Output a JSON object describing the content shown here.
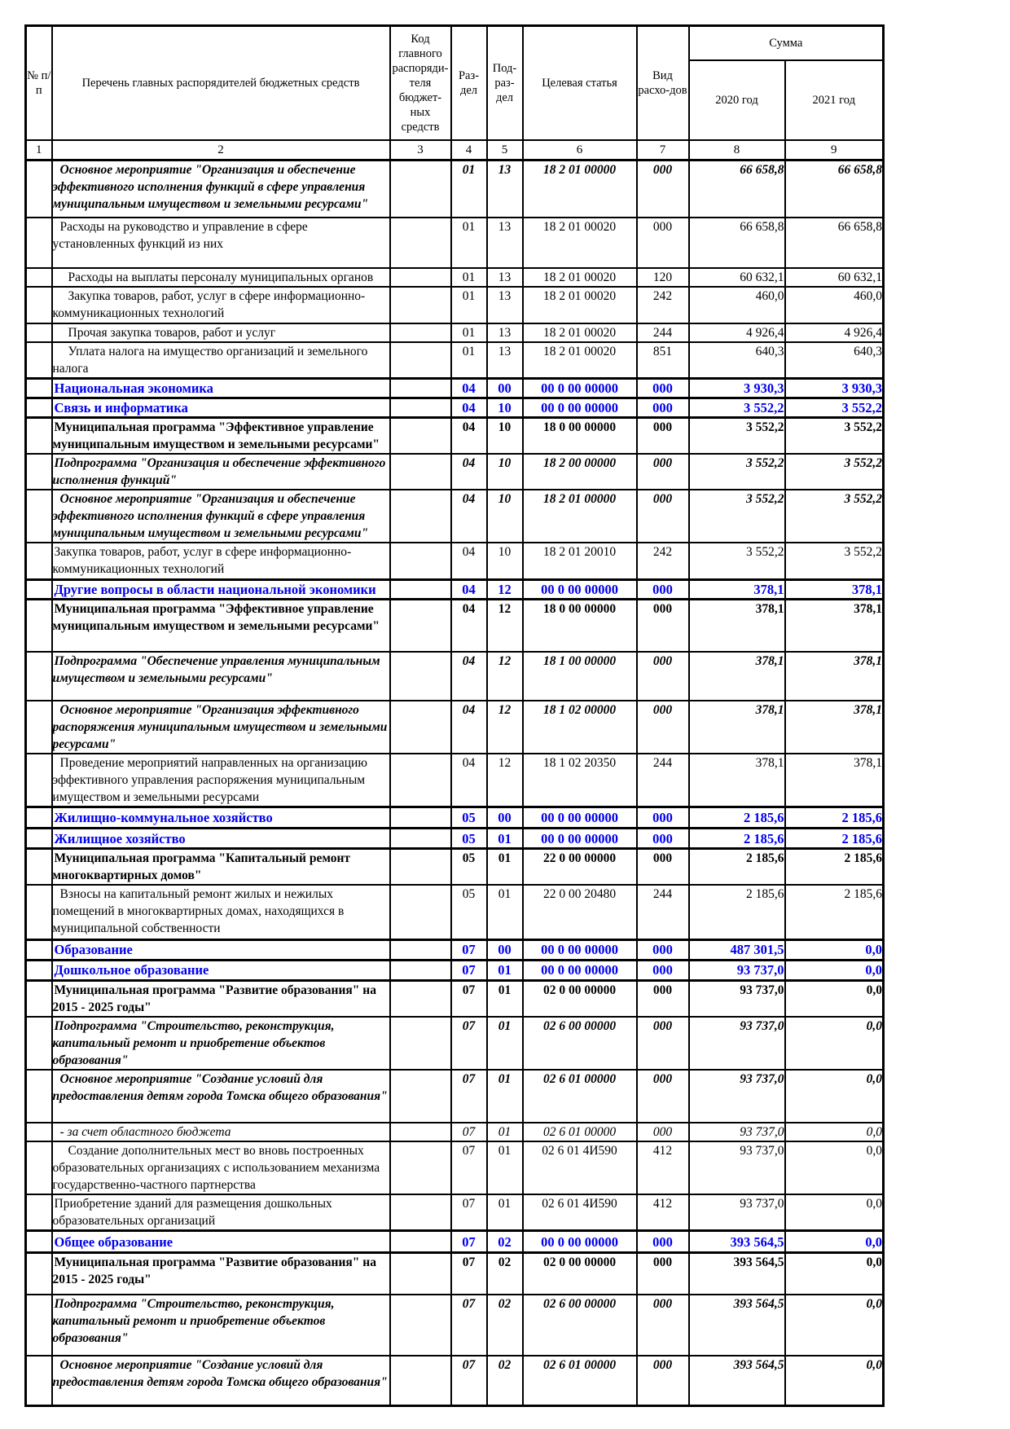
{
  "colors": {
    "section_text": "#0000ee"
  },
  "table": {
    "header": {
      "num": "№ п/п",
      "list": "Перечень главных распорядителей бюджетных средств",
      "grbs_code": "Код главного распоряди-теля бюджет-ных средств",
      "razdel": "Раз-дел",
      "podrazdel": "Под-раз-дел",
      "target_article": "Целевая статья",
      "vid": "Вид расхо-дов",
      "sum": "Сумма",
      "year_2020": "2020 год",
      "year_2021": "2021 год"
    },
    "column_numbers": [
      "1",
      "2",
      "3",
      "4",
      "5",
      "6",
      "7",
      "8",
      "9"
    ],
    "rows": [
      {
        "text": "Основное мероприятие \"Организация и обеспечение эффективного исполнения функций в сфере управления муниципальным имуществом и земельными ресурсами\"",
        "style": "bi",
        "ind": 1,
        "code": "",
        "rz": "01",
        "pr": "13",
        "cs": "18 2 01 00000",
        "vr": "000",
        "y2020": "66 658,8",
        "y2021": "66 658,8"
      },
      {
        "text": "Расходы на руководство и управление в сфере установленных функций из них",
        "style": "n",
        "ind": 1,
        "code": "",
        "rz": "01",
        "pr": "13",
        "cs": "18 2 01 00020",
        "vr": "000",
        "y2020": "66 658,8",
        "y2021": "66 658,8"
      },
      {
        "text": "Расходы на выплаты персоналу муниципальных органов",
        "style": "n",
        "ind": 2,
        "code": "",
        "rz": "01",
        "pr": "13",
        "cs": "18 2 01 00020",
        "vr": "120",
        "y2020": "60 632,1",
        "y2021": "60 632,1"
      },
      {
        "text": "Закупка товаров, работ, услуг в сфере информационно-коммуникационных технологий",
        "style": "n",
        "ind": 2,
        "code": "",
        "rz": "01",
        "pr": "13",
        "cs": "18 2 01 00020",
        "vr": "242",
        "y2020": "460,0",
        "y2021": "460,0"
      },
      {
        "text": "Прочая закупка товаров, работ и услуг",
        "style": "n",
        "ind": 2,
        "code": "",
        "rz": "01",
        "pr": "13",
        "cs": "18 2 01 00020",
        "vr": "244",
        "y2020": "4 926,4",
        "y2021": "4 926,4"
      },
      {
        "text": "Уплата налога на имущество организаций и земельного налога",
        "style": "n",
        "ind": 2,
        "code": "",
        "rz": "01",
        "pr": "13",
        "cs": "18 2 01 00020",
        "vr": "851",
        "y2020": "640,3",
        "y2021": "640,3"
      },
      {
        "text": "Национальная экономика",
        "style": "blue",
        "ind": 0,
        "code": "",
        "rz": "04",
        "pr": "00",
        "cs": "00 0 00 00000",
        "vr": "000",
        "y2020": "3 930,3",
        "y2021": "3 930,3"
      },
      {
        "text": "Связь и информатика",
        "style": "blue",
        "ind": 0,
        "code": "",
        "rz": "04",
        "pr": "10",
        "cs": "00 0 00 00000",
        "vr": "000",
        "y2020": "3 552,2",
        "y2021": "3 552,2"
      },
      {
        "text": "Муниципальная программа \"Эффективное управление муниципальным имуществом и земельными ресурсами\"",
        "style": "b",
        "ind": 0,
        "code": "",
        "rz": "04",
        "pr": "10",
        "cs": "18 0 00 00000",
        "vr": "000",
        "y2020": "3 552,2",
        "y2021": "3 552,2"
      },
      {
        "text": "Подпрограмма \"Организация и обеспечение эффективного исполнения функций\"",
        "style": "bi",
        "ind": 0,
        "code": "",
        "rz": "04",
        "pr": "10",
        "cs": "18 2 00 00000",
        "vr": "000",
        "y2020": "3 552,2",
        "y2021": "3 552,2"
      },
      {
        "text": "Основное мероприятие \"Организация и обеспечение эффективного исполнения функций в сфере управления муниципальным имуществом и земельными ресурсами\"",
        "style": "bi",
        "ind": 1,
        "code": "",
        "rz": "04",
        "pr": "10",
        "cs": "18 2 01 00000",
        "vr": "000",
        "y2020": "3 552,2",
        "y2021": "3 552,2"
      },
      {
        "text": "Закупка товаров, работ, услуг в сфере информационно-коммуникационных технологий",
        "style": "n",
        "ind": 0,
        "code": "",
        "rz": "04",
        "pr": "10",
        "cs": "18 2 01 20010",
        "vr": "242",
        "y2020": "3 552,2",
        "y2021": "3 552,2"
      },
      {
        "text": "Другие вопросы в области национальной экономики",
        "style": "blue",
        "ind": 0,
        "code": "",
        "rz": "04",
        "pr": "12",
        "cs": "00 0 00 00000",
        "vr": "000",
        "y2020": "378,1",
        "y2021": "378,1"
      },
      {
        "text": "Муниципальная программа \"Эффективное управление муниципальным имуществом и земельными ресурсами\"",
        "style": "b",
        "ind": 0,
        "code": "",
        "rz": "04",
        "pr": "12",
        "cs": "18 0 00 00000",
        "vr": "000",
        "y2020": "378,1",
        "y2021": "378,1"
      },
      {
        "text": "Подпрограмма \"Обеспечение управления муниципальным имуществом и земельными ресурсами\"",
        "style": "bi",
        "ind": 0,
        "code": "",
        "rz": "04",
        "pr": "12",
        "cs": "18 1 00 00000",
        "vr": "000",
        "y2020": "378,1",
        "y2021": "378,1"
      },
      {
        "text": "Основное мероприятие \"Организация эффективного распоряжения муниципальным имуществом и земельными ресурсами\"",
        "style": "bi",
        "ind": 1,
        "code": "",
        "rz": "04",
        "pr": "12",
        "cs": "18 1 02 00000",
        "vr": "000",
        "y2020": "378,1",
        "y2021": "378,1"
      },
      {
        "text": "Проведение мероприятий направленных на организацию эффективного управления распоряжения муниципальным имуществом и земельными ресурсами",
        "style": "n",
        "ind": 1,
        "code": "",
        "rz": "04",
        "pr": "12",
        "cs": "18 1 02 20350",
        "vr": "244",
        "y2020": "378,1",
        "y2021": "378,1"
      },
      {
        "text": "Жилищно-коммунальное хозяйство",
        "style": "blue",
        "ind": 0,
        "code": "",
        "rz": "05",
        "pr": "00",
        "cs": "00 0 00 00000",
        "vr": "000",
        "y2020": "2 185,6",
        "y2021": "2 185,6"
      },
      {
        "text": "Жилищное хозяйство",
        "style": "blue",
        "ind": 0,
        "code": "",
        "rz": "05",
        "pr": "01",
        "cs": "00 0 00 00000",
        "vr": "000",
        "y2020": "2 185,6",
        "y2021": "2 185,6"
      },
      {
        "text": "Муниципальная программа \"Капитальный ремонт многоквартирных домов\"",
        "style": "b",
        "ind": 0,
        "code": "",
        "rz": "05",
        "pr": "01",
        "cs": "22 0 00 00000",
        "vr": "000",
        "y2020": "2 185,6",
        "y2021": "2 185,6"
      },
      {
        "text": "Взносы на капитальный ремонт жилых и нежилых помещений в многоквартирных домах, находящихся в муниципальной собственности",
        "style": "n",
        "ind": 1,
        "code": "",
        "rz": "05",
        "pr": "01",
        "cs": "22 0 00 20480",
        "vr": "244",
        "y2020": "2 185,6",
        "y2021": "2 185,6"
      },
      {
        "text": "Образование",
        "style": "blue",
        "ind": 0,
        "code": "",
        "rz": "07",
        "pr": "00",
        "cs": "00 0 00 00000",
        "vr": "000",
        "y2020": "487 301,5",
        "y2021": "0,0"
      },
      {
        "text": "Дошкольное образование",
        "style": "blue",
        "ind": 0,
        "code": "",
        "rz": "07",
        "pr": "01",
        "cs": "00 0 00 00000",
        "vr": "000",
        "y2020": "93 737,0",
        "y2021": "0,0"
      },
      {
        "text": "Муниципальная программа \"Развитие образования\" на 2015 - 2025 годы\"",
        "style": "b",
        "ind": 0,
        "code": "",
        "rz": "07",
        "pr": "01",
        "cs": "02 0 00 00000",
        "vr": "000",
        "y2020": "93 737,0",
        "y2021": "0,0"
      },
      {
        "text": "Подпрограмма \"Строительство, реконструкция, капитальный ремонт и приобретение объектов образования\"",
        "style": "bi",
        "ind": 0,
        "code": "",
        "rz": "07",
        "pr": "01",
        "cs": "02 6 00 00000",
        "vr": "000",
        "y2020": "93 737,0",
        "y2021": "0,0"
      },
      {
        "text": "Основное мероприятие \"Создание условий для предоставления детям города Томска общего образования\"",
        "style": "bi",
        "ind": 1,
        "code": "",
        "rz": "07",
        "pr": "01",
        "cs": "02 6 01 00000",
        "vr": "000",
        "y2020": "93 737,0",
        "y2021": "0,0"
      },
      {
        "text": "- за счет областного бюджета",
        "style": "i",
        "ind": 1,
        "code": "",
        "rz": "07",
        "pr": "01",
        "cs": "02 6 01 00000",
        "vr": "000",
        "y2020": "93 737,0",
        "y2021": "0,0"
      },
      {
        "text": "Создание дополнительных мест во вновь построенных образовательных организациях с использованием механизма государственно-частного партнерства",
        "style": "n",
        "ind": 2,
        "code": "",
        "rz": "07",
        "pr": "01",
        "cs": "02 6 01 4И590",
        "vr": "412",
        "y2020": "93 737,0",
        "y2021": "0,0"
      },
      {
        "text": "Приобретение зданий для размещения дошкольных образовательных организаций",
        "style": "n",
        "ind": 0,
        "code": "",
        "rz": "07",
        "pr": "01",
        "cs": "02 6 01 4И590",
        "vr": "412",
        "y2020": "93 737,0",
        "y2021": "0,0"
      },
      {
        "text": "Общее образование",
        "style": "blue",
        "ind": 0,
        "code": "",
        "rz": "07",
        "pr": "02",
        "cs": "00 0 00 00000",
        "vr": "000",
        "y2020": "393 564,5",
        "y2021": "0,0"
      },
      {
        "text": "Муниципальная программа \"Развитие образования\" на 2015 - 2025 годы\"",
        "style": "b",
        "ind": 0,
        "code": "",
        "rz": "07",
        "pr": "02",
        "cs": "02 0 00 00000",
        "vr": "000",
        "y2020": "393 564,5",
        "y2021": "0,0"
      },
      {
        "text": "Подпрограмма \"Строительство, реконструкция, капитальный ремонт и приобретение объектов образования\"",
        "style": "bi",
        "ind": 0,
        "code": "",
        "rz": "07",
        "pr": "02",
        "cs": "02 6 00 00000",
        "vr": "000",
        "y2020": "393 564,5",
        "y2021": "0,0"
      },
      {
        "text": "Основное мероприятие \"Создание условий для предоставления детям города Томска общего образования\"",
        "style": "bi",
        "ind": 1,
        "code": "",
        "rz": "07",
        "pr": "02",
        "cs": "02 6 01 00000",
        "vr": "000",
        "y2020": "393 564,5",
        "y2021": "0,0"
      }
    ]
  }
}
